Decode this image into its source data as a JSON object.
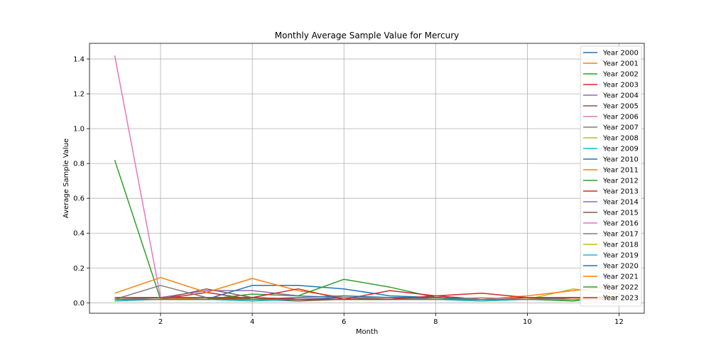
{
  "chart_data": {
    "type": "line",
    "title": "Monthly Average Sample Value for Mercury",
    "xlabel": "Month",
    "ylabel": "Average Sample Value",
    "xlim": [
      0.45,
      12.55
    ],
    "ylim": [
      -0.06,
      1.49
    ],
    "xticks": [
      2,
      4,
      6,
      8,
      10,
      12
    ],
    "yticks": [
      0.0,
      0.2,
      0.4,
      0.6,
      0.8,
      1.0,
      1.2,
      1.4
    ],
    "grid": true,
    "legend_position": "top-right",
    "x": [
      1,
      2,
      3,
      4,
      5,
      6,
      7,
      8,
      9,
      10,
      11,
      12
    ],
    "series": [
      {
        "name": "Year 2000",
        "color": "#1f77b4",
        "values": [
          0.02,
          0.02,
          0.02,
          0.03,
          0.02,
          0.03,
          0.02,
          0.02,
          0.02,
          0.02,
          0.02,
          0.02
        ]
      },
      {
        "name": "Year 2001",
        "color": "#ff7f0e",
        "values": [
          0.03,
          0.03,
          0.03,
          0.03,
          0.02,
          0.02,
          0.02,
          0.03,
          0.02,
          0.02,
          0.03,
          0.02
        ]
      },
      {
        "name": "Year 2002",
        "color": "#2ca02c",
        "values": [
          0.82,
          0.02,
          0.02,
          0.03,
          0.02,
          0.02,
          0.02,
          0.02,
          0.02,
          0.02,
          0.02,
          0.02
        ]
      },
      {
        "name": "Year 2003",
        "color": "#d62728",
        "values": [
          0.02,
          0.02,
          0.06,
          0.02,
          0.02,
          0.02,
          0.02,
          0.03,
          0.02,
          0.02,
          0.02,
          0.02
        ]
      },
      {
        "name": "Year 2004",
        "color": "#9467bd",
        "values": [
          0.02,
          0.03,
          0.07,
          0.07,
          0.04,
          0.03,
          0.03,
          0.02,
          0.02,
          0.02,
          0.02,
          0.02
        ]
      },
      {
        "name": "Year 2005",
        "color": "#8c564b",
        "values": [
          0.02,
          0.02,
          0.08,
          0.03,
          0.02,
          0.02,
          0.02,
          0.02,
          0.02,
          0.02,
          0.02,
          0.02
        ]
      },
      {
        "name": "Year 2006",
        "color": "#e377c2",
        "values": [
          1.42,
          0.03,
          0.02,
          0.02,
          0.02,
          0.02,
          0.02,
          0.02,
          0.02,
          0.02,
          0.02,
          0.02
        ]
      },
      {
        "name": "Year 2007",
        "color": "#7f7f7f",
        "values": [
          0.02,
          0.1,
          0.03,
          0.02,
          0.02,
          0.02,
          0.02,
          0.02,
          0.02,
          0.02,
          0.02,
          0.02
        ]
      },
      {
        "name": "Year 2008",
        "color": "#bcbd22",
        "values": [
          0.02,
          0.02,
          0.02,
          0.02,
          0.02,
          0.02,
          0.02,
          0.02,
          0.02,
          0.02,
          0.08,
          0.05
        ]
      },
      {
        "name": "Year 2009",
        "color": "#17becf",
        "values": [
          0.01,
          0.02,
          0.02,
          0.02,
          0.02,
          0.02,
          0.02,
          0.02,
          0.01,
          0.02,
          0.02,
          0.02
        ]
      },
      {
        "name": "Year 2010",
        "color": "#1f77b4",
        "values": [
          0.02,
          0.02,
          0.02,
          0.1,
          0.1,
          0.08,
          0.04,
          0.03,
          0.02,
          0.02,
          0.02,
          0.02
        ]
      },
      {
        "name": "Year 2011",
        "color": "#ff7f0e",
        "values": [
          0.055,
          0.145,
          0.06,
          0.14,
          0.07,
          0.03,
          0.03,
          0.03,
          0.02,
          0.04,
          0.07,
          0.1
        ]
      },
      {
        "name": "Year 2012",
        "color": "#2ca02c",
        "values": [
          0.02,
          0.02,
          0.02,
          0.05,
          0.04,
          0.135,
          0.09,
          0.03,
          0.02,
          0.02,
          0.02,
          0.02
        ]
      },
      {
        "name": "Year 2013",
        "color": "#d62728",
        "values": [
          0.02,
          0.02,
          0.02,
          0.03,
          0.08,
          0.02,
          0.07,
          0.04,
          0.02,
          0.03,
          0.02,
          0.03
        ]
      },
      {
        "name": "Year 2014",
        "color": "#9467bd",
        "values": [
          0.02,
          0.02,
          0.02,
          0.02,
          0.02,
          0.02,
          0.02,
          0.02,
          0.02,
          0.02,
          0.02,
          0.02
        ]
      },
      {
        "name": "Year 2015",
        "color": "#8c564b",
        "values": [
          0.02,
          0.02,
          0.02,
          0.02,
          0.01,
          0.02,
          0.02,
          0.02,
          0.02,
          0.02,
          0.02,
          0.02
        ]
      },
      {
        "name": "Year 2016",
        "color": "#e377c2",
        "values": [
          0.02,
          0.02,
          0.02,
          0.02,
          0.02,
          0.02,
          0.02,
          0.02,
          0.03,
          0.02,
          0.02,
          0.02
        ]
      },
      {
        "name": "Year 2017",
        "color": "#7f7f7f",
        "values": [
          0.02,
          0.02,
          0.02,
          0.02,
          0.02,
          0.02,
          0.02,
          0.02,
          0.02,
          0.02,
          0.02,
          0.02
        ]
      },
      {
        "name": "Year 2018",
        "color": "#bcbd22",
        "values": [
          0.02,
          0.02,
          0.02,
          0.02,
          0.02,
          0.02,
          0.02,
          0.02,
          0.02,
          0.02,
          0.02,
          0.02
        ]
      },
      {
        "name": "Year 2019",
        "color": "#17becf",
        "values": [
          0.02,
          0.02,
          0.02,
          0.01,
          0.02,
          0.02,
          0.02,
          0.02,
          0.01,
          0.02,
          0.02,
          0.02
        ]
      },
      {
        "name": "Year 2020",
        "color": "#1f77b4",
        "values": [
          0.02,
          0.02,
          0.02,
          0.02,
          0.03,
          0.04,
          0.03,
          0.03,
          0.02,
          0.02,
          0.03,
          0.03
        ]
      },
      {
        "name": "Year 2021",
        "color": "#ff7f0e",
        "values": [
          0.02,
          0.02,
          0.03,
          0.03,
          0.02,
          0.02,
          0.02,
          0.02,
          0.02,
          0.02,
          0.02,
          0.02
        ]
      },
      {
        "name": "Year 2022",
        "color": "#2ca02c",
        "values": [
          0.02,
          0.02,
          0.02,
          0.02,
          0.02,
          0.02,
          0.02,
          0.02,
          0.02,
          0.02,
          0.01,
          0.04
        ]
      },
      {
        "name": "Year 2023",
        "color": "#d62728",
        "values": [
          0.03,
          0.03,
          0.03,
          0.03,
          0.02,
          0.02,
          0.02,
          0.04,
          0.055,
          0.03,
          0.03,
          0.03
        ]
      }
    ]
  }
}
